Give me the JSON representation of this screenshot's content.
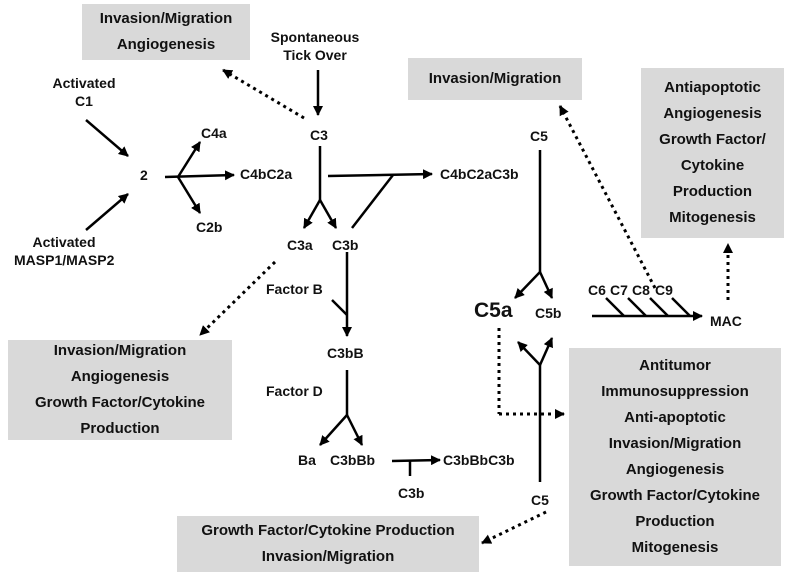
{
  "boxes": {
    "c3_effects": [
      "Invasion/Migration",
      "Angiogenesis"
    ],
    "c5_effects": [
      "Invasion/Migration"
    ],
    "mac_effects": [
      "Antiapoptotic",
      "Angiogenesis",
      "Growth Factor/",
      "Cytokine",
      "Production",
      "Mitogenesis"
    ],
    "c3a_effects": [
      "Invasion/Migration",
      "Angiogenesis",
      "Growth Factor/Cytokine",
      "Production"
    ],
    "c5a_effects": [
      "Antitumor",
      "Immunosuppression",
      "Anti-apoptotic",
      "Invasion/Migration",
      "Angiogenesis",
      "Growth Factor/Cytokine",
      "Production",
      "Mitogenesis"
    ],
    "c5_bottom_effects": [
      "Growth Factor/Cytokine Production",
      "Invasion/Migration"
    ]
  },
  "nodes": {
    "activated_c1": [
      "Activated",
      "C1"
    ],
    "activated_masp": [
      "Activated",
      "MASP1/MASP2"
    ],
    "c2_fragment": "2",
    "c4a": "C4a",
    "c4bc2a": "C4bC2a",
    "c2b": "C2b",
    "spontaneous": [
      "Spontaneous",
      "Tick Over"
    ],
    "c3": "C3",
    "c4bc2ac3b": "C4bC2aC3b",
    "c3a": "C3a",
    "c3b": "C3b",
    "factor_b": "Factor B",
    "c3bb": "C3bB",
    "factor_d": "Factor D",
    "ba": "Ba",
    "c3bbb": "C3bBb",
    "c3bbbc3b": "C3bBbC3b",
    "c3b_bottom": "C3b",
    "c5_top": "C5",
    "c5a": "C5a",
    "c5b": "C5b",
    "c6": "C6",
    "c7": "C7",
    "c8": "C8",
    "c9": "C9",
    "mac": "MAC",
    "c5_bottom": "C5"
  }
}
